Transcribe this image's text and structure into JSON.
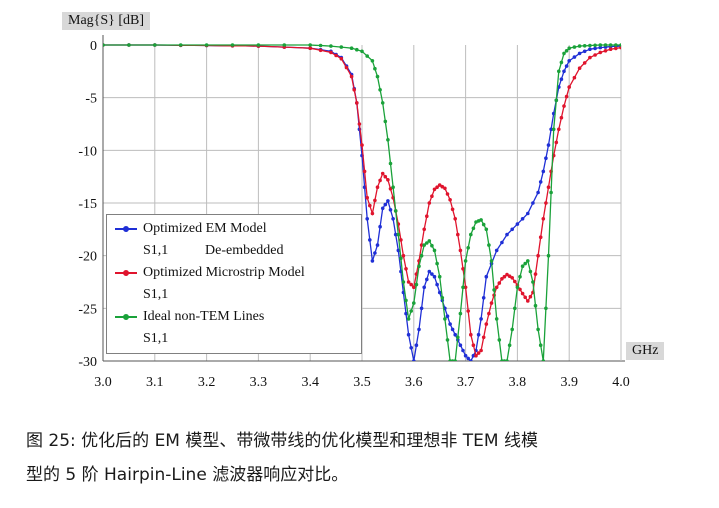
{
  "chart_data": {
    "type": "line",
    "ylabel": "Mag{S} [dB]",
    "xlabel": "GHz",
    "xlim": [
      3.0,
      4.0
    ],
    "ylim": [
      -30,
      0
    ],
    "xticks": [
      "3.0",
      "3.1",
      "3.2",
      "3.3",
      "3.4",
      "3.5",
      "3.6",
      "3.7",
      "3.8",
      "3.9",
      "4.0"
    ],
    "yticks": [
      "0",
      "-5",
      "-10",
      "-15",
      "-20",
      "-25",
      "-30"
    ],
    "grid": true,
    "legend_position": "bottom-left",
    "series": [
      {
        "name": "Optimized EM Model",
        "param": "S1,1",
        "note": "De-embedded",
        "color": "#1f2fd6",
        "x": [
          3.0,
          3.1,
          3.2,
          3.3,
          3.4,
          3.44,
          3.46,
          3.48,
          3.49,
          3.5,
          3.51,
          3.52,
          3.53,
          3.54,
          3.55,
          3.56,
          3.57,
          3.58,
          3.59,
          3.6,
          3.61,
          3.62,
          3.63,
          3.64,
          3.65,
          3.66,
          3.67,
          3.68,
          3.69,
          3.7,
          3.71,
          3.72,
          3.73,
          3.74,
          3.76,
          3.78,
          3.8,
          3.82,
          3.84,
          3.85,
          3.86,
          3.87,
          3.88,
          3.89,
          3.9,
          3.92,
          3.94,
          3.96,
          3.98,
          4.0
        ],
        "y": [
          0,
          0,
          -0.05,
          -0.1,
          -0.3,
          -0.6,
          -1.2,
          -2.8,
          -5.5,
          -10.5,
          -16.5,
          -20.5,
          -19.0,
          -15.5,
          -14.8,
          -16.5,
          -19.5,
          -23.5,
          -27.5,
          -30,
          -27.0,
          -23.0,
          -21.5,
          -22.0,
          -23.5,
          -25.0,
          -26.5,
          -27.5,
          -28.5,
          -29.5,
          -30,
          -29.0,
          -26.0,
          -22.0,
          -19.5,
          -18.0,
          -17.0,
          -16.0,
          -14.0,
          -12.0,
          -9.5,
          -6.5,
          -4.0,
          -2.5,
          -1.5,
          -0.8,
          -0.4,
          -0.25,
          -0.15,
          -0.1
        ]
      },
      {
        "name": "Optimized Microstrip Model",
        "param": "S1,1",
        "note": "",
        "color": "#e0142d",
        "x": [
          3.0,
          3.1,
          3.2,
          3.3,
          3.4,
          3.44,
          3.46,
          3.48,
          3.49,
          3.5,
          3.51,
          3.52,
          3.53,
          3.54,
          3.55,
          3.56,
          3.57,
          3.58,
          3.59,
          3.6,
          3.61,
          3.62,
          3.63,
          3.64,
          3.65,
          3.66,
          3.67,
          3.68,
          3.69,
          3.7,
          3.71,
          3.72,
          3.73,
          3.74,
          3.75,
          3.76,
          3.77,
          3.78,
          3.79,
          3.8,
          3.81,
          3.82,
          3.83,
          3.84,
          3.85,
          3.86,
          3.87,
          3.88,
          3.89,
          3.9,
          3.92,
          3.94,
          3.96,
          3.98,
          4.0
        ],
        "y": [
          0,
          0,
          -0.05,
          -0.1,
          -0.3,
          -0.7,
          -1.3,
          -3.0,
          -5.5,
          -9.5,
          -14.5,
          -16.0,
          -13.5,
          -12.2,
          -12.8,
          -14.5,
          -17.0,
          -20.0,
          -22.5,
          -23.0,
          -20.5,
          -17.5,
          -15.0,
          -13.7,
          -13.3,
          -13.6,
          -14.7,
          -16.5,
          -19.5,
          -23.0,
          -27.5,
          -29.5,
          -29.0,
          -26.5,
          -24.5,
          -23.0,
          -22.2,
          -21.8,
          -22.1,
          -22.8,
          -23.6,
          -24.3,
          -23.5,
          -20.0,
          -16.5,
          -13.5,
          -10.5,
          -8.0,
          -5.8,
          -4.0,
          -2.2,
          -1.2,
          -0.7,
          -0.4,
          -0.25
        ]
      },
      {
        "name": "Ideal non-TEM Lines",
        "param": "S1,1",
        "note": "",
        "color": "#1aa23a",
        "x": [
          3.0,
          3.1,
          3.2,
          3.3,
          3.4,
          3.44,
          3.48,
          3.5,
          3.52,
          3.53,
          3.54,
          3.55,
          3.56,
          3.57,
          3.58,
          3.59,
          3.6,
          3.61,
          3.62,
          3.63,
          3.64,
          3.65,
          3.66,
          3.67,
          3.68,
          3.69,
          3.7,
          3.71,
          3.72,
          3.73,
          3.74,
          3.75,
          3.76,
          3.77,
          3.78,
          3.79,
          3.8,
          3.81,
          3.82,
          3.83,
          3.84,
          3.85,
          3.86,
          3.87,
          3.88,
          3.89,
          3.9,
          3.92,
          3.94,
          3.96,
          3.98,
          4.0
        ],
        "y": [
          0,
          0,
          0,
          0,
          0,
          -0.1,
          -0.3,
          -0.6,
          -1.5,
          -3.0,
          -5.5,
          -9.0,
          -13.5,
          -18.0,
          -22.5,
          -26.0,
          -24.5,
          -21.0,
          -19.0,
          -18.6,
          -19.5,
          -22.0,
          -26.0,
          -30,
          -30,
          -25.5,
          -20.5,
          -18.0,
          -16.8,
          -16.6,
          -17.5,
          -20.5,
          -26.0,
          -30,
          -30,
          -27.0,
          -23.0,
          -21.0,
          -20.5,
          -22.5,
          -27.0,
          -30,
          -20.0,
          -8.0,
          -2.5,
          -0.8,
          -0.3,
          -0.1,
          -0.05,
          0,
          0,
          0
        ]
      }
    ]
  },
  "caption": {
    "line1": "图 25: 优化后的 EM 模型、带微带线的优化模型和理想非 TEM 线模",
    "line2": "型的 5 阶 Hairpin-Line 滤波器响应对比。"
  }
}
